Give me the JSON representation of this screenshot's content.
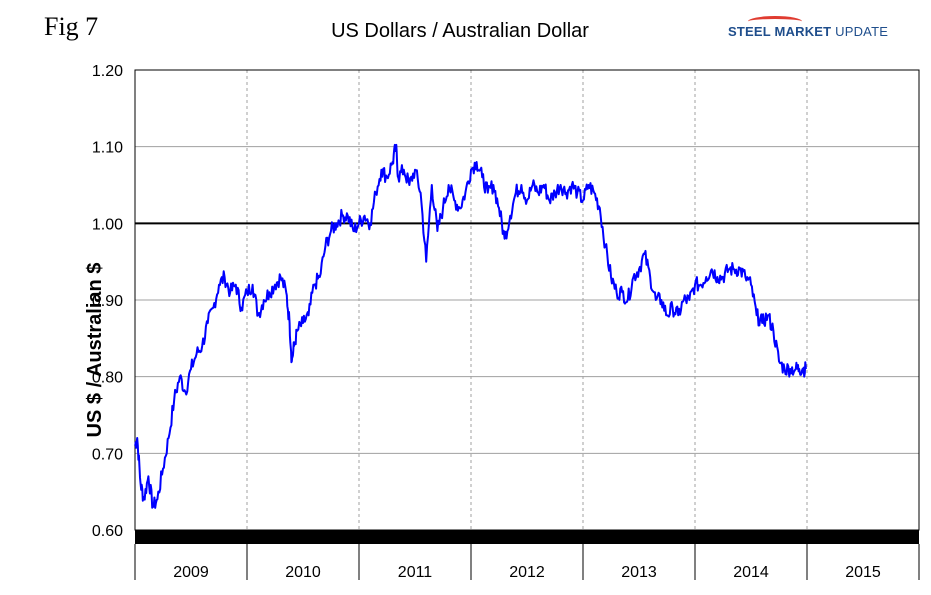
{
  "figure_label": "Fig 7",
  "logo": {
    "word1": "STEEL",
    "word2": "MARKET",
    "word3": "UPDATE"
  },
  "colors": {
    "series": "#0000ff",
    "reference_line": "#000000",
    "grid": "#a0a0a0",
    "logo_blue": "#1f4e8c",
    "logo_red": "#e03c31"
  },
  "chart_data": {
    "type": "line",
    "title": "US Dollars  / Australian Dollar",
    "ylabel": "US $ / Australian $",
    "xlabel": "",
    "ylim": [
      0.6,
      1.2
    ],
    "yticks": [
      "0.60",
      "0.70",
      "0.80",
      "0.90",
      "1.00",
      "1.10",
      "1.20"
    ],
    "xlim": [
      2009.0,
      2016.0
    ],
    "x_categories": [
      "2009",
      "2010",
      "2011",
      "2012",
      "2013",
      "2014",
      "2015"
    ],
    "reference_line": 1.0,
    "grid": "vertical dashed at year boundaries, horizontal solid at ticks",
    "legend": "none",
    "series": [
      {
        "x": [
          2009.0,
          2009.02,
          2009.05,
          2009.08,
          2009.12,
          2009.16,
          2009.2,
          2009.25,
          2009.3,
          2009.35,
          2009.4,
          2009.45,
          2009.5,
          2009.55,
          2009.6,
          2009.65,
          2009.7,
          2009.75,
          2009.8,
          2009.85,
          2009.9,
          2009.95,
          2010.0,
          2010.05,
          2010.1,
          2010.15,
          2010.2,
          2010.25,
          2010.3,
          2010.35,
          2010.38,
          2010.4,
          2010.42,
          2010.45,
          2010.5,
          2010.55,
          2010.6,
          2010.65,
          2010.7,
          2010.75,
          2010.8,
          2010.85,
          2010.9,
          2010.95,
          2011.0,
          2011.05,
          2011.1,
          2011.15,
          2011.2,
          2011.25,
          2011.3,
          2011.33,
          2011.35,
          2011.4,
          2011.45,
          2011.5,
          2011.55,
          2011.6,
          2011.65,
          2011.7,
          2011.75,
          2011.8,
          2011.85,
          2011.9,
          2011.95,
          2012.0,
          2012.05,
          2012.1,
          2012.15,
          2012.2,
          2012.25,
          2012.3,
          2012.35,
          2012.4,
          2012.45,
          2012.5,
          2012.55,
          2012.6,
          2012.65,
          2012.7,
          2012.75,
          2012.8,
          2012.85,
          2012.9,
          2012.95,
          2013.0,
          2013.05,
          2013.1,
          2013.15,
          2013.2,
          2013.25,
          2013.3,
          2013.35,
          2013.4,
          2013.45,
          2013.5,
          2013.55,
          2013.6,
          2013.65,
          2013.7,
          2013.75,
          2013.8,
          2013.85,
          2013.9,
          2013.95,
          2014.0,
          2014.05,
          2014.1,
          2014.15,
          2014.2,
          2014.25,
          2014.3,
          2014.35,
          2014.4,
          2014.45,
          2014.5,
          2014.55,
          2014.6,
          2014.65,
          2014.7,
          2014.75,
          2014.8,
          2014.85,
          2014.9,
          2014.93,
          2014.96,
          2014.99
        ],
        "values": [
          0.71,
          0.72,
          0.66,
          0.64,
          0.67,
          0.63,
          0.64,
          0.68,
          0.72,
          0.77,
          0.8,
          0.78,
          0.81,
          0.83,
          0.84,
          0.87,
          0.89,
          0.92,
          0.93,
          0.91,
          0.92,
          0.89,
          0.91,
          0.92,
          0.88,
          0.9,
          0.91,
          0.92,
          0.93,
          0.91,
          0.87,
          0.82,
          0.84,
          0.86,
          0.87,
          0.88,
          0.92,
          0.93,
          0.97,
          0.99,
          1.0,
          1.01,
          1.01,
          0.99,
          1.0,
          1.01,
          1.0,
          1.04,
          1.07,
          1.06,
          1.08,
          1.1,
          1.06,
          1.07,
          1.05,
          1.07,
          1.04,
          0.95,
          1.05,
          0.99,
          1.02,
          1.05,
          1.03,
          1.02,
          1.04,
          1.07,
          1.08,
          1.06,
          1.04,
          1.05,
          1.02,
          0.98,
          1.01,
          1.04,
          1.05,
          1.03,
          1.05,
          1.04,
          1.05,
          1.03,
          1.04,
          1.05,
          1.04,
          1.05,
          1.04,
          1.03,
          1.05,
          1.04,
          1.02,
          0.97,
          0.93,
          0.91,
          0.91,
          0.9,
          0.93,
          0.94,
          0.96,
          0.93,
          0.9,
          0.9,
          0.88,
          0.89,
          0.88,
          0.9,
          0.9,
          0.92,
          0.92,
          0.93,
          0.94,
          0.93,
          0.93,
          0.94,
          0.94,
          0.94,
          0.93,
          0.92,
          0.88,
          0.87,
          0.88,
          0.86,
          0.82,
          0.81,
          0.81,
          0.81,
          0.81,
          0.81,
          0.81
        ]
      }
    ]
  }
}
